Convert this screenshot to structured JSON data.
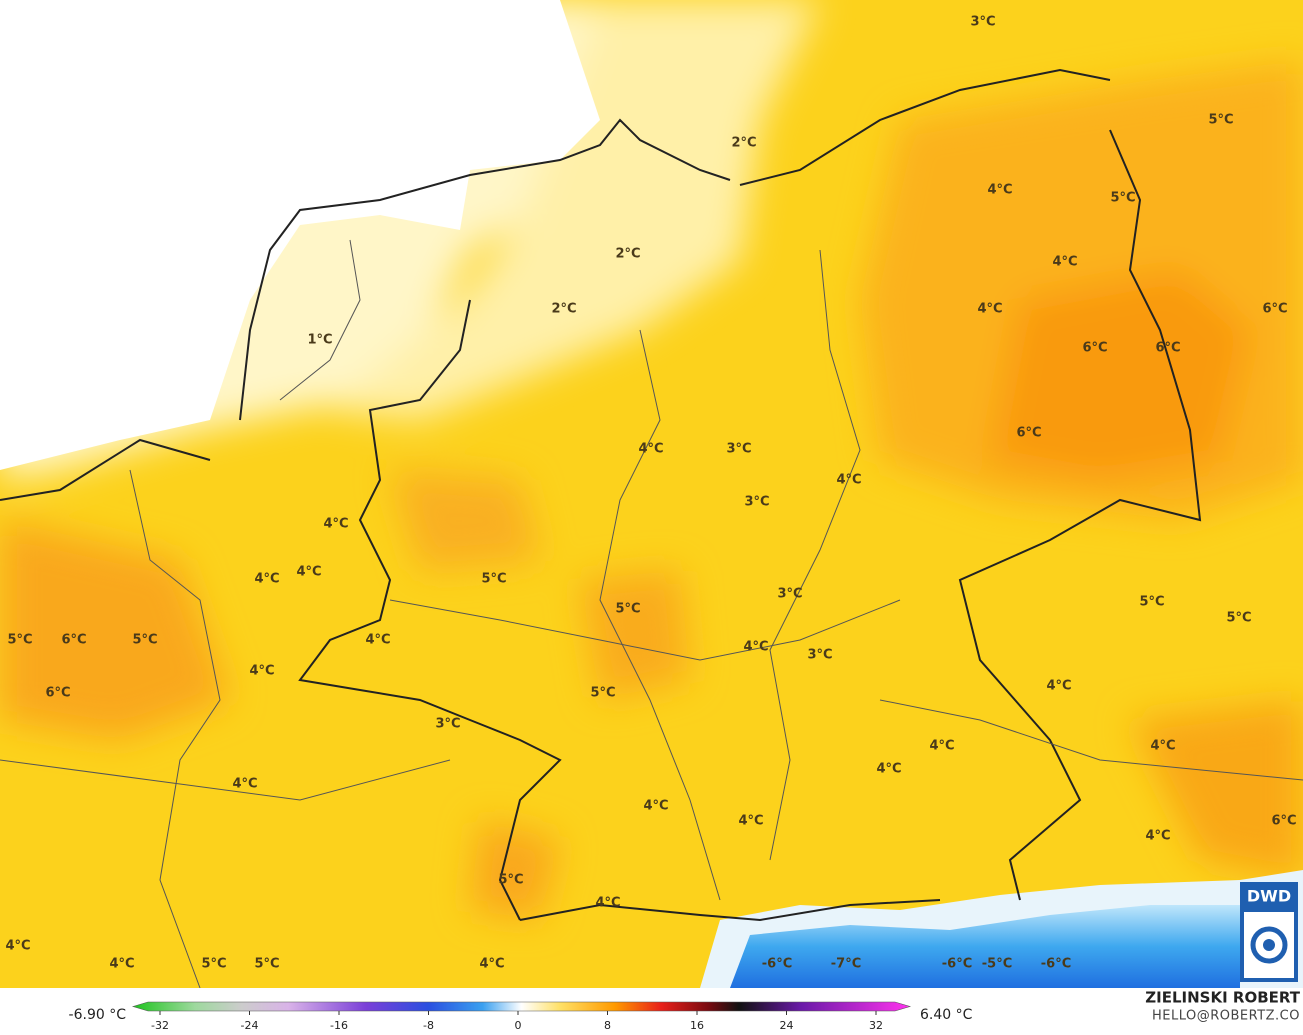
{
  "map": {
    "temperature_labels": [
      "3°C",
      "5°C",
      "2°C",
      "4°C",
      "5°C",
      "2°C",
      "4°C",
      "2°C",
      "4°C",
      "6°C",
      "1°C",
      "6°C",
      "6°C",
      "6°C",
      "4°C",
      "3°C",
      "4°C",
      "3°C",
      "4°C",
      "4°C",
      "4°C",
      "5°C",
      "3°C",
      "5°C",
      "5°C",
      "5°C",
      "4°C",
      "5°C",
      "6°C",
      "5°C",
      "4°C",
      "3°C",
      "4°C",
      "4°C",
      "6°C",
      "5°C",
      "3°C",
      "4°C",
      "4°C",
      "4°C",
      "4°C",
      "4°C",
      "4°C",
      "6°C",
      "4°C",
      "5°C",
      "4°C",
      "4°C",
      "4°C",
      "5°C",
      "5°C",
      "4°C",
      "-6°C",
      "-7°C",
      "-6°C",
      "-5°C",
      "-6°C"
    ],
    "logo": "DWD"
  },
  "colorbar": {
    "min_label": "-6.90 °C",
    "max_label": "6.40 °C",
    "ticks": [
      -32,
      -24,
      -16,
      -8,
      0,
      8,
      16,
      24,
      32
    ]
  },
  "credits": {
    "author": "ZIELINSKI ROBERT",
    "contact": "HELLO@ROBERTZ.CO"
  }
}
